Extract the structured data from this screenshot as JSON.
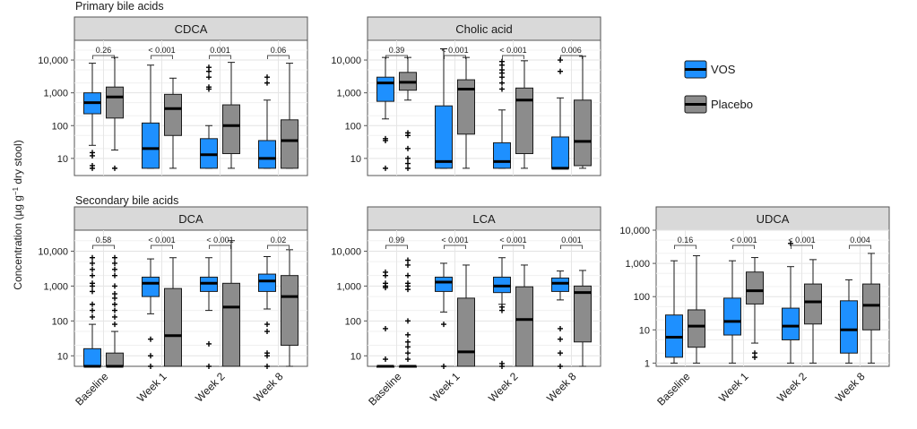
{
  "chart_data": {
    "type": "boxplot",
    "sections": [
      "Primary bile acids",
      "Secondary bile acids"
    ],
    "ylabel": "Concentration (µg g",
    "ylabel_sup": "−1",
    "ylabel_tail": " dry stool)",
    "categories": [
      "Baseline",
      "Week 1",
      "Week 2",
      "Week 8"
    ],
    "legend": [
      {
        "name": "VOS",
        "color": "#1e90ff"
      },
      {
        "name": "Placebo",
        "color": "#8c8c8c"
      }
    ],
    "panels": [
      {
        "title": "CDCA",
        "ylim": [
          3,
          40000
        ],
        "yticks": [
          10,
          100,
          1000,
          10000
        ],
        "yticklabels": [
          "10",
          "100",
          "1,000",
          "10,000"
        ],
        "pvalues": [
          "0.26",
          "< 0.001",
          "0.001",
          "0.06"
        ],
        "boxes": [
          {
            "group": "VOS",
            "whiskerLow": 25,
            "q1": 230,
            "median": 500,
            "q3": 1000,
            "whiskerHigh": 8000,
            "outliers": [
              15,
              12,
              5,
              6
            ]
          },
          {
            "group": "Placebo",
            "whiskerLow": 18,
            "q1": 170,
            "median": 750,
            "q3": 1500,
            "whiskerHigh": 12000,
            "outliers": [
              5
            ]
          },
          {
            "group": "VOS",
            "whiskerLow": 5,
            "q1": 5,
            "median": 20,
            "q3": 120,
            "whiskerHigh": 7000,
            "outliers": []
          },
          {
            "group": "Placebo",
            "whiskerLow": 5,
            "q1": 50,
            "median": 330,
            "q3": 900,
            "whiskerHigh": 2800,
            "outliers": []
          },
          {
            "group": "VOS",
            "whiskerLow": 5,
            "q1": 5,
            "median": 13,
            "q3": 40,
            "whiskerHigh": 100,
            "outliers": [
              6000,
              4500,
              3000,
              1500,
              1300
            ]
          },
          {
            "group": "Placebo",
            "whiskerLow": 5,
            "q1": 14,
            "median": 100,
            "q3": 430,
            "whiskerHigh": 8500,
            "outliers": []
          },
          {
            "group": "VOS",
            "whiskerLow": 5,
            "q1": 5,
            "median": 10,
            "q3": 35,
            "whiskerHigh": 600,
            "outliers": [
              3000,
              2000
            ]
          },
          {
            "group": "Placebo",
            "whiskerLow": 5,
            "q1": 5,
            "median": 35,
            "q3": 150,
            "whiskerHigh": 8000,
            "outliers": []
          }
        ]
      },
      {
        "title": "Cholic acid",
        "ylim": [
          3,
          40000
        ],
        "yticks": [
          10,
          100,
          1000,
          10000
        ],
        "yticklabels": [
          "10",
          "100",
          "1,000",
          "10,000"
        ],
        "pvalues": [
          "0.39",
          "< 0.001",
          "< 0.001",
          "0.006"
        ],
        "boxes": [
          {
            "group": "VOS",
            "whiskerLow": 160,
            "q1": 550,
            "median": 2000,
            "q3": 3000,
            "whiskerHigh": 12000,
            "outliers": [
              40,
              35,
              5
            ]
          },
          {
            "group": "Placebo",
            "whiskerLow": 600,
            "q1": 1200,
            "median": 2100,
            "q3": 4200,
            "whiskerHigh": 12000,
            "outliers": [
              60,
              50,
              20,
              10,
              7,
              5
            ]
          },
          {
            "group": "VOS",
            "whiskerLow": 5,
            "q1": 5,
            "median": 8,
            "q3": 400,
            "whiskerHigh": 22000,
            "outliers": []
          },
          {
            "group": "Placebo",
            "whiskerLow": 5,
            "q1": 55,
            "median": 1300,
            "q3": 2500,
            "whiskerHigh": 12000,
            "outliers": []
          },
          {
            "group": "VOS",
            "whiskerLow": 5,
            "q1": 5,
            "median": 8,
            "q3": 30,
            "whiskerHigh": 300,
            "outliers": [
              9000,
              7000,
              5000,
              4000,
              3000,
              2000,
              1300
            ]
          },
          {
            "group": "Placebo",
            "whiskerLow": 5,
            "q1": 14,
            "median": 600,
            "q3": 1400,
            "whiskerHigh": 9500,
            "outliers": []
          },
          {
            "group": "VOS",
            "whiskerLow": 5,
            "q1": 5,
            "median": 5,
            "q3": 45,
            "whiskerHigh": 700,
            "outliers": [
              10000,
              4500
            ]
          },
          {
            "group": "Placebo",
            "whiskerLow": 5,
            "q1": 6,
            "median": 33,
            "q3": 600,
            "whiskerHigh": 13000,
            "outliers": []
          }
        ]
      },
      {
        "title": "DCA",
        "ylim": [
          5,
          40000
        ],
        "yticks": [
          10,
          100,
          1000,
          10000
        ],
        "yticklabels": [
          "10",
          "100",
          "1,000",
          "10,000"
        ],
        "pvalues": [
          "0.58",
          "< 0.001",
          "< 0.001",
          "0.02"
        ],
        "boxes": [
          {
            "group": "VOS",
            "whiskerLow": 5,
            "q1": 5,
            "median": 5,
            "q3": 16,
            "whiskerHigh": 80,
            "outliers": [
              6500,
              4500,
              3000,
              2000,
              1200,
              1000,
              700,
              300,
              200,
              130
            ]
          },
          {
            "group": "Placebo",
            "whiskerLow": 5,
            "q1": 5,
            "median": 5,
            "q3": 12,
            "whiskerHigh": 50,
            "outliers": [
              6500,
              4500,
              3000,
              2000,
              1000,
              600,
              450,
              300,
              200,
              130,
              80
            ]
          },
          {
            "group": "VOS",
            "whiskerLow": 160,
            "q1": 500,
            "median": 1200,
            "q3": 1800,
            "whiskerHigh": 6000,
            "outliers": [
              30,
              10,
              5
            ]
          },
          {
            "group": "Placebo",
            "whiskerLow": 5,
            "q1": 5,
            "median": 38,
            "q3": 850,
            "whiskerHigh": 6500,
            "outliers": []
          },
          {
            "group": "VOS",
            "whiskerLow": 200,
            "q1": 700,
            "median": 1200,
            "q3": 1800,
            "whiskerHigh": 6500,
            "outliers": [
              22,
              5
            ]
          },
          {
            "group": "Placebo",
            "whiskerLow": 5,
            "q1": 5,
            "median": 250,
            "q3": 1200,
            "whiskerHigh": 20000,
            "outliers": []
          },
          {
            "group": "VOS",
            "whiskerLow": 220,
            "q1": 700,
            "median": 1400,
            "q3": 2200,
            "whiskerHigh": 7000,
            "outliers": [
              80,
              50,
              12,
              10,
              5
            ]
          },
          {
            "group": "Placebo",
            "whiskerLow": 5,
            "q1": 20,
            "median": 500,
            "q3": 2000,
            "whiskerHigh": 11000,
            "outliers": []
          }
        ]
      },
      {
        "title": "LCA",
        "ylim": [
          5,
          40000
        ],
        "yticks": [
          10,
          100,
          1000,
          10000
        ],
        "yticklabels": [
          "10",
          "100",
          "1,000",
          "10,000"
        ],
        "pvalues": [
          "0.99",
          "< 0.001",
          "< 0.001",
          "0.001"
        ],
        "boxes": [
          {
            "group": "VOS",
            "whiskerLow": 5,
            "q1": 5,
            "median": 5,
            "q3": 5,
            "whiskerHigh": 5,
            "outliers": [
              2500,
              2000,
              1200,
              1000,
              900,
              60,
              8
            ]
          },
          {
            "group": "Placebo",
            "whiskerLow": 5,
            "q1": 5,
            "median": 5,
            "q3": 5,
            "whiskerHigh": 5,
            "outliers": [
              5500,
              4000,
              2000,
              1200,
              1000,
              800,
              100,
              40,
              25,
              18,
              12,
              8
            ]
          },
          {
            "group": "VOS",
            "whiskerLow": 180,
            "q1": 700,
            "median": 1300,
            "q3": 1800,
            "whiskerHigh": 4500,
            "outliers": [
              80,
              5
            ]
          },
          {
            "group": "Placebo",
            "whiskerLow": 5,
            "q1": 5,
            "median": 13,
            "q3": 450,
            "whiskerHigh": 4000,
            "outliers": []
          },
          {
            "group": "VOS",
            "whiskerLow": 300,
            "q1": 650,
            "median": 1000,
            "q3": 1800,
            "whiskerHigh": 6500,
            "outliers": [
              250,
              200,
              6,
              5
            ]
          },
          {
            "group": "Placebo",
            "whiskerLow": 5,
            "q1": 5,
            "median": 110,
            "q3": 950,
            "whiskerHigh": 4000,
            "outliers": []
          },
          {
            "group": "VOS",
            "whiskerLow": 400,
            "q1": 700,
            "median": 1200,
            "q3": 1700,
            "whiskerHigh": 2700,
            "outliers": [
              60,
              30,
              12,
              5
            ]
          },
          {
            "group": "Placebo",
            "whiskerLow": 5,
            "q1": 25,
            "median": 650,
            "q3": 1000,
            "whiskerHigh": 2800,
            "outliers": []
          }
        ]
      },
      {
        "title": "UDCA",
        "ylim": [
          0.8,
          10000
        ],
        "yticks": [
          1,
          10,
          100,
          1000,
          10000
        ],
        "yticklabels": [
          "1",
          "10",
          "100",
          "1,000",
          "10,000"
        ],
        "pvalues": [
          "0.16",
          "< 0.001",
          "< 0.001",
          "0.004"
        ],
        "boxes": [
          {
            "group": "VOS",
            "whiskerLow": 1,
            "q1": 1.5,
            "median": 6,
            "q3": 28,
            "whiskerHigh": 1200,
            "outliers": []
          },
          {
            "group": "Placebo",
            "whiskerLow": 1,
            "q1": 3,
            "median": 13,
            "q3": 40,
            "whiskerHigh": 1700,
            "outliers": []
          },
          {
            "group": "VOS",
            "whiskerLow": 1,
            "q1": 7,
            "median": 18,
            "q3": 90,
            "whiskerHigh": 1200,
            "outliers": []
          },
          {
            "group": "Placebo",
            "whiskerLow": 4,
            "q1": 60,
            "median": 150,
            "q3": 550,
            "whiskerHigh": 1500,
            "outliers": [
              2,
              1.5
            ]
          },
          {
            "group": "VOS",
            "whiskerLow": 1,
            "q1": 5,
            "median": 13,
            "q3": 45,
            "whiskerHigh": 800,
            "outliers": [
              4000
            ]
          },
          {
            "group": "Placebo",
            "whiskerLow": 1,
            "q1": 15,
            "median": 70,
            "q3": 240,
            "whiskerHigh": 1300,
            "outliers": []
          },
          {
            "group": "VOS",
            "whiskerLow": 1,
            "q1": 2,
            "median": 10,
            "q3": 75,
            "whiskerHigh": 320,
            "outliers": []
          },
          {
            "group": "Placebo",
            "whiskerLow": 1,
            "q1": 10,
            "median": 55,
            "q3": 240,
            "whiskerHigh": 2000,
            "outliers": []
          }
        ]
      }
    ]
  }
}
